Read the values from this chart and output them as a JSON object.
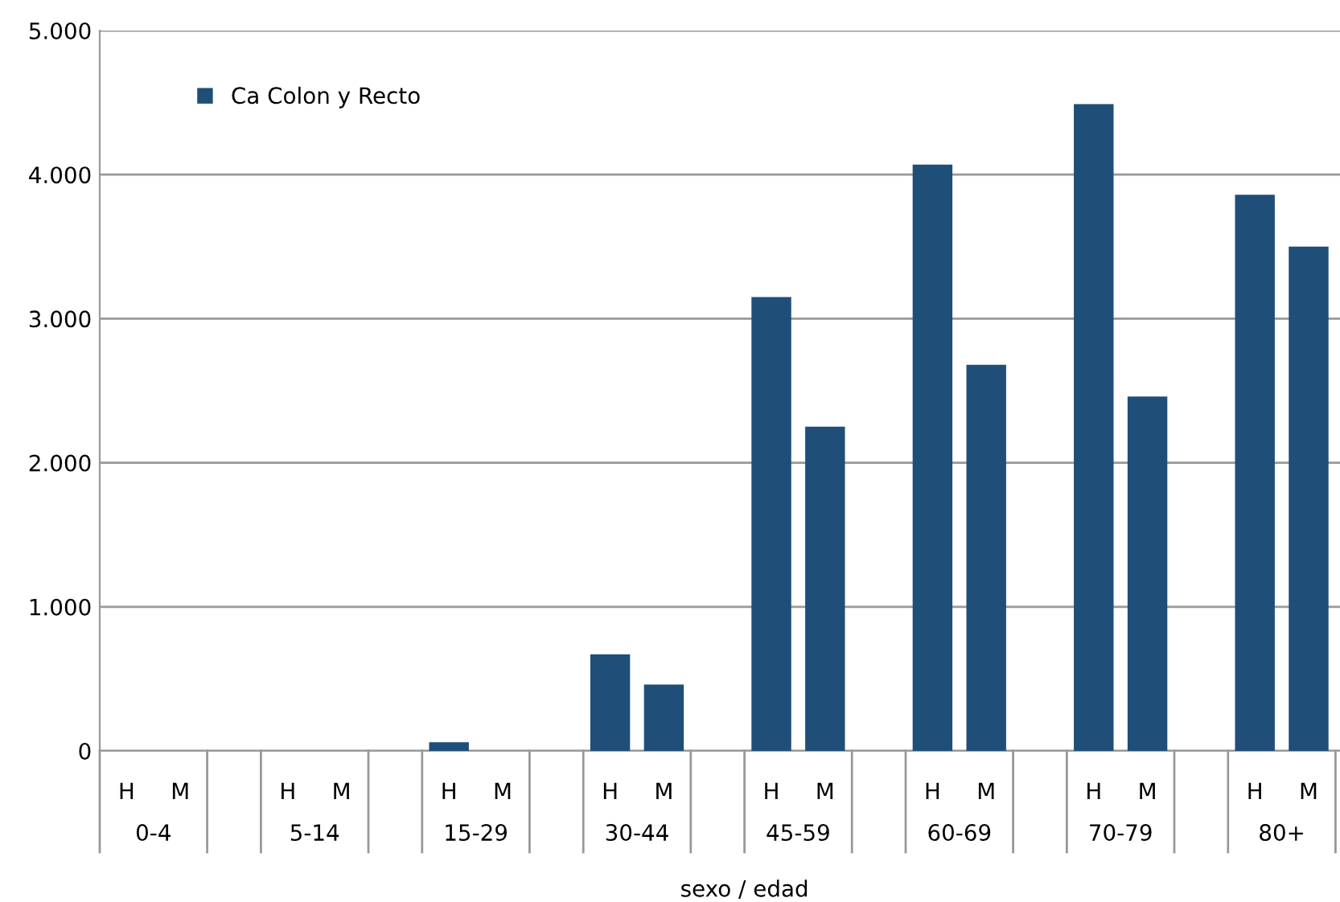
{
  "chart_data": {
    "type": "bar",
    "xlabel": "sexo / edad",
    "categories": [
      "H",
      "M",
      null,
      "H",
      "M",
      null,
      "H",
      "M",
      null,
      "H",
      "M",
      null,
      "H",
      "M",
      null,
      "H",
      "M",
      null,
      "H",
      "M",
      null,
      "H",
      "M",
      null
    ],
    "series": [
      {
        "name": "Ca Colon y Recto",
        "color": "#1f4e79",
        "values": [
          0,
          0,
          null,
          0,
          0,
          null,
          60,
          0,
          null,
          670,
          460,
          null,
          3150,
          2250,
          null,
          4070,
          2680,
          null,
          4490,
          2460,
          null,
          3860,
          3500,
          null
        ]
      }
    ],
    "annotations": [
      "0-4",
      "5-14",
      "15-29",
      "30-44",
      "45-59",
      "60-69",
      "70-79",
      "80+"
    ],
    "ylim": [
      0,
      5000
    ],
    "yticks": [
      {
        "value": 0,
        "label": "0"
      },
      {
        "value": 1000,
        "label": "1.000"
      },
      {
        "value": 2000,
        "label": "2.000"
      },
      {
        "value": 3000,
        "label": "3.000"
      },
      {
        "value": 4000,
        "label": "4.000"
      },
      {
        "value": 5000,
        "label": "5.000"
      }
    ],
    "grid": "y",
    "legend": "top left"
  }
}
